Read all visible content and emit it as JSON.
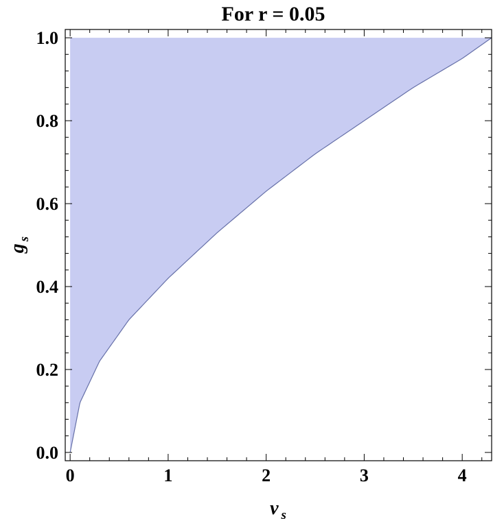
{
  "chart_data": {
    "type": "area",
    "title": "For r = 0.05",
    "xlabel": {
      "main": "v",
      "sub": "s"
    },
    "ylabel": {
      "main": "g",
      "sub": "s"
    },
    "xlim": [
      -0.05,
      4.3
    ],
    "ylim": [
      -0.02,
      1.02
    ],
    "xticks": [
      0,
      1,
      2,
      3,
      4
    ],
    "yticks": [
      0.0,
      0.2,
      0.4,
      0.6,
      0.8,
      1.0
    ],
    "xtick_labels": [
      "0",
      "1",
      "2",
      "3",
      "4"
    ],
    "ytick_labels": [
      "0.0",
      "0.2",
      "0.4",
      "0.6",
      "0.8",
      "1.0"
    ],
    "grid": false,
    "series": [
      {
        "region": "feasible region above boundary curve, bounded by g = 1 and v = 0",
        "fill_color": "#c8ccf2",
        "edge_color": "#6670a8",
        "boundary": {
          "x": [
            0,
            0.1,
            0.3,
            0.6,
            1.0,
            1.5,
            2.0,
            2.5,
            3.0,
            3.5,
            4.0,
            4.3
          ],
          "y": [
            0.0,
            0.12,
            0.22,
            0.32,
            0.42,
            0.53,
            0.63,
            0.72,
            0.8,
            0.88,
            0.95,
            1.0
          ]
        }
      }
    ]
  }
}
